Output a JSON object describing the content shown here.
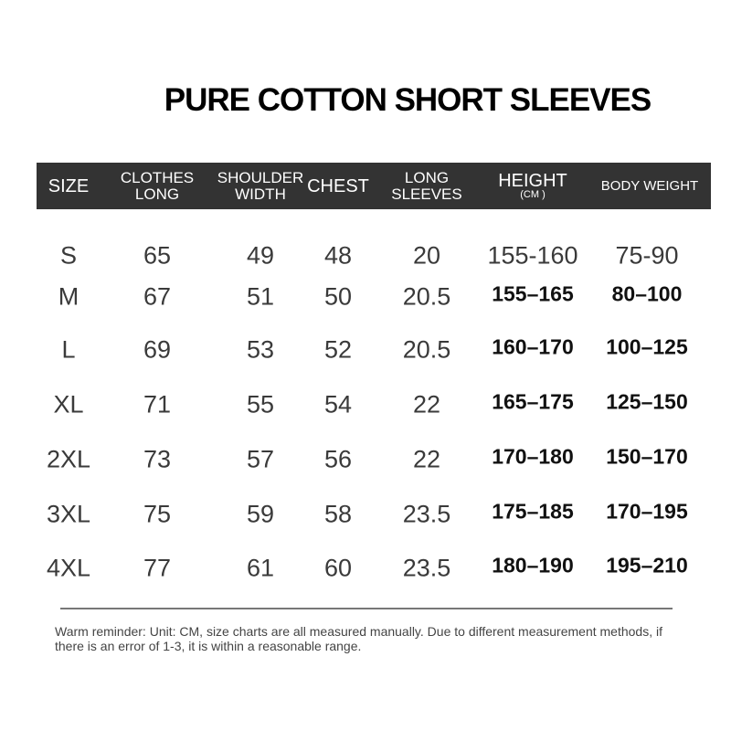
{
  "title": "PURE COTTON SHORT SLEEVES",
  "headers": [
    {
      "lines": [
        "SIZE"
      ]
    },
    {
      "lines": [
        "CLOTHES",
        "LONG"
      ]
    },
    {
      "lines": [
        "SHOULDER",
        "WIDTH"
      ]
    },
    {
      "lines": [
        "CHEST"
      ]
    },
    {
      "lines": [
        "LONG",
        "SLEEVES"
      ]
    },
    {
      "lines": [
        "HEIGHT"
      ],
      "sub": "(CM )"
    },
    {
      "lines": [
        "BODY WEIGHT"
      ]
    }
  ],
  "rows": [
    [
      "S",
      "65",
      "49",
      "48",
      "20",
      "155-160",
      "75-90"
    ],
    [
      "M",
      "67",
      "51",
      "50",
      "20.5",
      "155–165",
      "80–100"
    ],
    [
      "L",
      "69",
      "53",
      "52",
      "20.5",
      "160–170",
      "100–125"
    ],
    [
      "XL",
      "71",
      "55",
      "54",
      "22",
      "165–175",
      "125–150"
    ],
    [
      "2XL",
      "73",
      "57",
      "56",
      "22",
      "170–180",
      "150–170"
    ],
    [
      "3XL",
      "75",
      "59",
      "58",
      "23.5",
      "175–185",
      "170–195"
    ],
    [
      "4XL",
      "77",
      "61",
      "60",
      "23.5",
      "180–190",
      "195–210"
    ]
  ],
  "note": "Warm reminder: Unit: CM, size charts are all measured manually. Due to different measurement methods, if there is an error of 1-3, it is within a reasonable range.",
  "colors": {
    "header_bg": "#333333",
    "header_text": "#ffffff"
  }
}
